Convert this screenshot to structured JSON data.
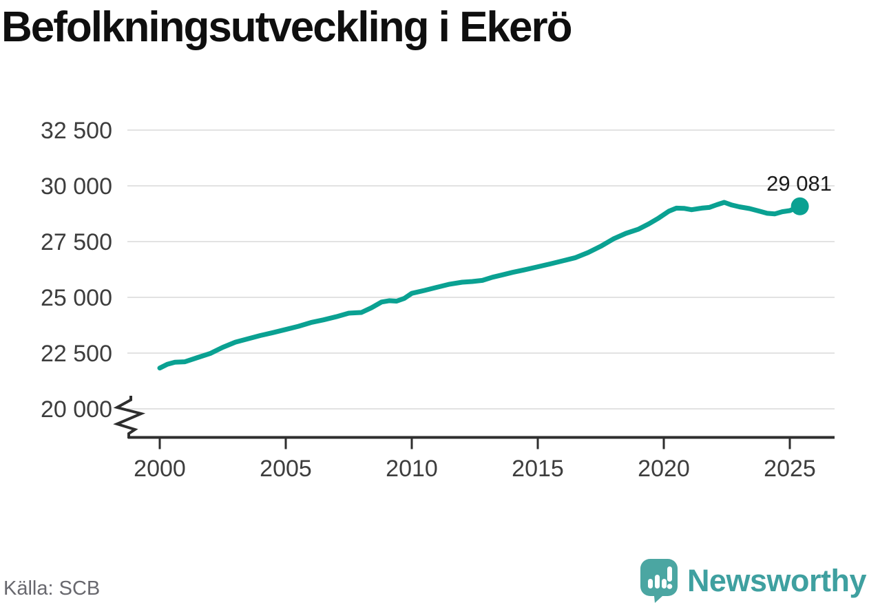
{
  "header": {
    "title": "Befolkningsutveckling i Ekerö"
  },
  "footer": {
    "source": "Källa: SCB",
    "brand_name": "Newsworthy"
  },
  "chart_data": {
    "type": "line",
    "title": "Befolkningsutveckling i Ekerö",
    "xlabel": "",
    "ylabel": "",
    "x_range": [
      1998.7,
      2026.7
    ],
    "y_range": [
      20000,
      32500
    ],
    "axis_break": true,
    "grid": true,
    "legend": "none",
    "y_ticks": [
      {
        "value": 32500,
        "label": "32 500"
      },
      {
        "value": 30000,
        "label": "30 000"
      },
      {
        "value": 27500,
        "label": "27 500"
      },
      {
        "value": 25000,
        "label": "25 000"
      },
      {
        "value": 22500,
        "label": "22 500"
      },
      {
        "value": 20000,
        "label": "20 000"
      }
    ],
    "x_ticks": [
      {
        "value": 2000,
        "label": "2000"
      },
      {
        "value": 2005,
        "label": "2005"
      },
      {
        "value": 2010,
        "label": "2010"
      },
      {
        "value": 2015,
        "label": "2015"
      },
      {
        "value": 2020,
        "label": "2020"
      },
      {
        "value": 2025,
        "label": "2025"
      }
    ],
    "series": [
      {
        "points": [
          [
            2000.0,
            21830
          ],
          [
            2000.3,
            22000
          ],
          [
            2000.6,
            22090
          ],
          [
            2001.0,
            22110
          ],
          [
            2001.5,
            22300
          ],
          [
            2002.0,
            22480
          ],
          [
            2002.5,
            22760
          ],
          [
            2003.0,
            22990
          ],
          [
            2003.5,
            23140
          ],
          [
            2004.0,
            23290
          ],
          [
            2004.5,
            23420
          ],
          [
            2005.0,
            23560
          ],
          [
            2005.5,
            23700
          ],
          [
            2006.0,
            23870
          ],
          [
            2006.5,
            23990
          ],
          [
            2007.0,
            24130
          ],
          [
            2007.5,
            24290
          ],
          [
            2008.0,
            24320
          ],
          [
            2008.4,
            24530
          ],
          [
            2008.8,
            24790
          ],
          [
            2009.1,
            24850
          ],
          [
            2009.4,
            24830
          ],
          [
            2009.7,
            24950
          ],
          [
            2010.0,
            25180
          ],
          [
            2010.5,
            25310
          ],
          [
            2011.0,
            25450
          ],
          [
            2011.5,
            25590
          ],
          [
            2012.0,
            25680
          ],
          [
            2012.4,
            25710
          ],
          [
            2012.8,
            25760
          ],
          [
            2013.2,
            25900
          ],
          [
            2013.6,
            26010
          ],
          [
            2014.0,
            26120
          ],
          [
            2014.5,
            26240
          ],
          [
            2015.0,
            26370
          ],
          [
            2015.5,
            26500
          ],
          [
            2016.0,
            26640
          ],
          [
            2016.5,
            26780
          ],
          [
            2017.0,
            27010
          ],
          [
            2017.5,
            27290
          ],
          [
            2018.0,
            27620
          ],
          [
            2018.5,
            27870
          ],
          [
            2019.0,
            28060
          ],
          [
            2019.4,
            28290
          ],
          [
            2019.8,
            28560
          ],
          [
            2020.2,
            28860
          ],
          [
            2020.5,
            29000
          ],
          [
            2020.8,
            28990
          ],
          [
            2021.1,
            28930
          ],
          [
            2021.5,
            29000
          ],
          [
            2021.8,
            29030
          ],
          [
            2022.1,
            29150
          ],
          [
            2022.4,
            29260
          ],
          [
            2022.7,
            29140
          ],
          [
            2023.0,
            29060
          ],
          [
            2023.4,
            28980
          ],
          [
            2023.8,
            28860
          ],
          [
            2024.1,
            28770
          ],
          [
            2024.4,
            28740
          ],
          [
            2024.7,
            28840
          ],
          [
            2025.0,
            28890
          ],
          [
            2025.4,
            29081
          ]
        ]
      }
    ],
    "end_point": {
      "x": 2025.4,
      "value": 29081,
      "label": "29 081"
    },
    "colors": {
      "line": "#0aa192",
      "grid": "#e2e2e2",
      "axis": "#2e2e2e",
      "tick_text": "#3d3d3d",
      "end_label_text": "#1a1a1a"
    }
  }
}
